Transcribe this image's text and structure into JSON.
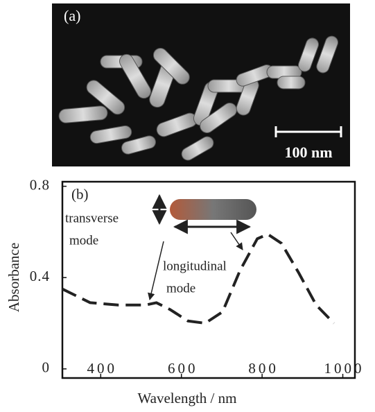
{
  "image": {
    "label": "(a)",
    "scale_bar": "100 nm"
  },
  "chart_data": {
    "type": "line",
    "label": "(b)",
    "x_label": "Wavelength / nm",
    "y_label": "Absorbance",
    "annotations": [
      "transverse",
      "mode",
      "longitudinal",
      "mode"
    ],
    "x": [
      305,
      374,
      443,
      512,
      538,
      572,
      616,
      659,
      702,
      745,
      788,
      814,
      848,
      891,
      934,
      978
    ],
    "series": [
      {
        "color": "#222222",
        "values": [
          0.35,
          0.29,
          0.28,
          0.28,
          0.29,
          0.26,
          0.21,
          0.2,
          0.25,
          0.43,
          0.57,
          0.59,
          0.55,
          0.42,
          0.28,
          0.2
        ]
      }
    ],
    "xlim": [
      305,
      1030
    ],
    "xticks": [
      400,
      600,
      800,
      1000
    ],
    "ylim": [
      -0.04,
      0.82
    ],
    "yticks": [
      0,
      0.4,
      0.8
    ],
    "line_style": "dashed"
  }
}
